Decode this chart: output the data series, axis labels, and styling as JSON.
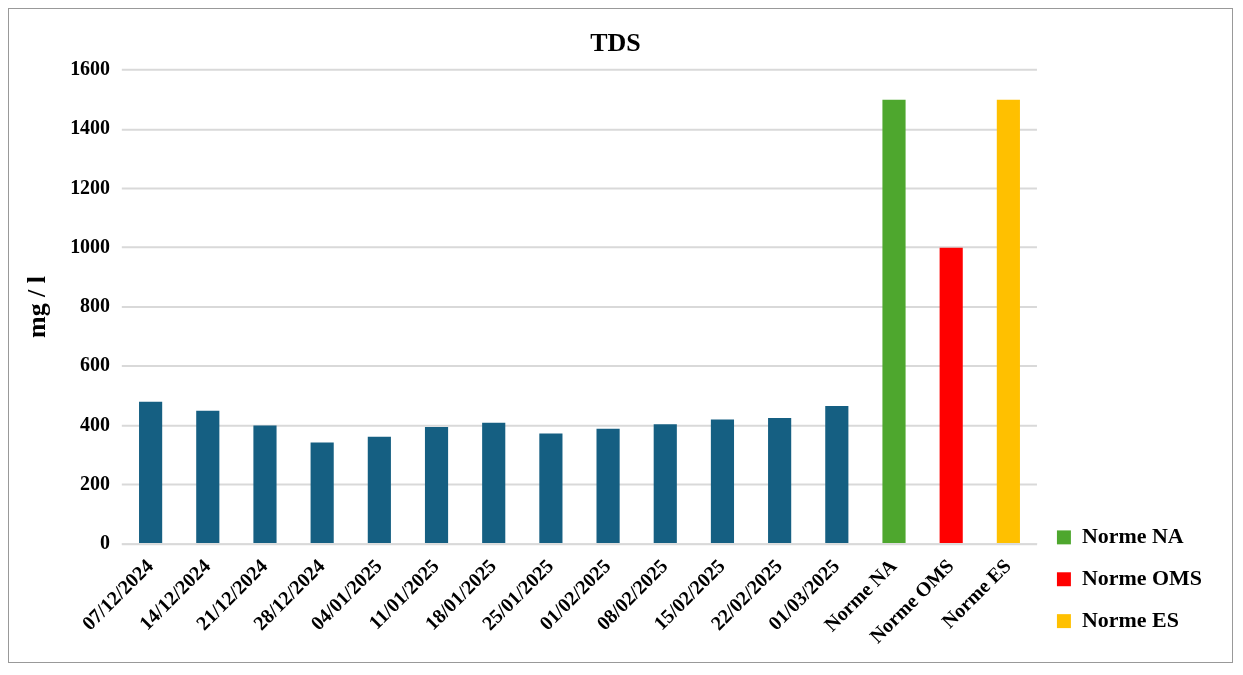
{
  "chart_data": {
    "type": "bar",
    "title": "TDS",
    "ylabel": "mg / l",
    "categories": [
      "07/12/2024",
      "14/12/2024",
      "21/12/2024",
      "28/12/2024",
      "04/01/2025",
      "11/01/2025",
      "18/01/2025",
      "25/01/2025",
      "01/02/2025",
      "08/02/2025",
      "15/02/2025",
      "22/02/2025",
      "01/03/2025",
      "Norme NA",
      "Norme OMS",
      "Norme ES"
    ],
    "series": [
      {
        "color": "#155f82",
        "values": [
          480,
          450,
          400,
          343,
          362,
          395,
          409,
          373,
          389,
          404,
          420,
          425,
          466,
          null,
          null,
          null
        ]
      },
      {
        "name": "Norme NA",
        "color": "#4ea72e",
        "values": [
          null,
          null,
          null,
          null,
          null,
          null,
          null,
          null,
          null,
          null,
          null,
          null,
          null,
          1500,
          null,
          null
        ]
      },
      {
        "name": "Norme OMS",
        "color": "#ff0000",
        "values": [
          null,
          null,
          null,
          null,
          null,
          null,
          null,
          null,
          null,
          null,
          null,
          null,
          null,
          null,
          1000,
          null
        ]
      },
      {
        "name": "Norme ES",
        "color": "#ffc000",
        "values": [
          null,
          null,
          null,
          null,
          null,
          null,
          null,
          null,
          null,
          null,
          null,
          null,
          null,
          null,
          null,
          1500
        ]
      }
    ],
    "ylim": [
      0,
      1600
    ],
    "yticks": [
      0,
      200,
      400,
      600,
      800,
      1000,
      1200,
      1400,
      1600
    ],
    "grid": "y",
    "legend": "bottom right"
  }
}
